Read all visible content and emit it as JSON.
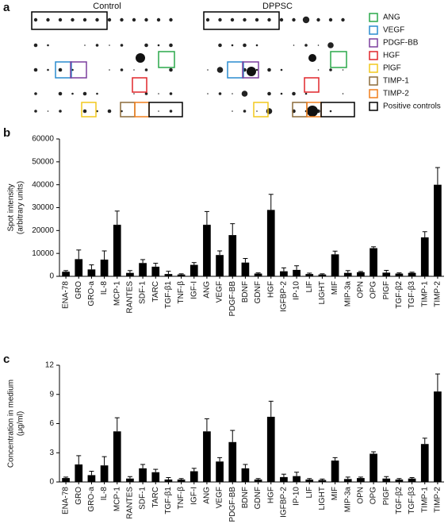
{
  "array_panel": {
    "panel": "a",
    "titles": [
      "Control",
      "DPPSC"
    ],
    "legend": [
      {
        "label": "ANG",
        "color": "#2aa84a"
      },
      {
        "label": "VEGF",
        "color": "#2a8ccf"
      },
      {
        "label": "PDGF-BB",
        "color": "#7b3f9e"
      },
      {
        "label": "HGF",
        "color": "#e0262b"
      },
      {
        "label": "PlGF",
        "color": "#f2c81d"
      },
      {
        "label": "TIMP-1",
        "color": "#8c6b3a"
      },
      {
        "label": "TIMP-2",
        "color": "#f07f1c"
      },
      {
        "label": "Positive controls",
        "color": "#000000"
      }
    ]
  },
  "chart_data": [
    {
      "type": "bar",
      "panel": "b",
      "ylabel": [
        "Spot intensity",
        "(arbitrary units)"
      ],
      "color": "#000000",
      "categories": [
        "ENA-78",
        "GRO",
        "GRO-a",
        "IL-8",
        "MCP-1",
        "RANTES",
        "SDF-1",
        "TARC",
        "TGF-β1",
        "TNF-β",
        "IGF-I",
        "ANG",
        "VEGF",
        "PDGF-BB",
        "BDNF",
        "GDNF",
        "HGF",
        "IGFBP-2",
        "IP-10",
        "LIF",
        "LIGHT",
        "MIF",
        "MIP-3a",
        "OPN",
        "OPG",
        "PIGF",
        "TGF-β2",
        "TGF-β3",
        "TIMP-1",
        "TIMP-2"
      ],
      "values": [
        2000,
        7500,
        3000,
        7300,
        22500,
        1500,
        5800,
        4200,
        1000,
        800,
        5000,
        22500,
        9300,
        18000,
        6000,
        1200,
        29000,
        2200,
        2800,
        1000,
        800,
        9600,
        1500,
        1800,
        12300,
        1600,
        1200,
        1500,
        17000,
        40000
      ],
      "errors": [
        500,
        4000,
        2000,
        3800,
        6000,
        1000,
        1500,
        1500,
        1200,
        300,
        1000,
        5800,
        1800,
        5000,
        1800,
        300,
        6800,
        1500,
        1800,
        400,
        300,
        1400,
        1000,
        300,
        600,
        1000,
        300,
        300,
        2500,
        7500
      ],
      "ylim": [
        0,
        60000
      ],
      "yticks": [
        0,
        10000,
        20000,
        30000,
        40000,
        50000,
        60000
      ]
    },
    {
      "type": "bar",
      "panel": "c",
      "ylabel": [
        "Concentration in medium",
        "(μg/ml)"
      ],
      "color": "#000000",
      "categories": [
        "ENA-78",
        "GRO",
        "GRO-a",
        "IL-8",
        "MCP-1",
        "RANTES",
        "SDF-1",
        "TARC",
        "TGF-β1",
        "TNF-β",
        "IGF-I",
        "ANG",
        "VEGF",
        "PDGF-BB",
        "BDNF",
        "GDNF",
        "HGF",
        "IGFBP-2",
        "IP-10",
        "LIF",
        "LIGHT",
        "MIF",
        "MIP-3a",
        "OPN",
        "OPG",
        "PIGF",
        "TGF-β2",
        "TGF-β3",
        "TIMP-1",
        "TIMP-2"
      ],
      "values": [
        0.4,
        1.8,
        0.7,
        1.7,
        5.2,
        0.35,
        1.4,
        1.0,
        0.25,
        0.25,
        1.1,
        5.2,
        2.1,
        4.1,
        1.4,
        0.25,
        6.7,
        0.5,
        0.6,
        0.25,
        0.2,
        2.2,
        0.3,
        0.4,
        2.9,
        0.35,
        0.25,
        0.35,
        3.9,
        9.3
      ],
      "errors": [
        0.1,
        0.9,
        0.4,
        0.9,
        1.4,
        0.2,
        0.4,
        0.3,
        0.2,
        0.1,
        0.3,
        1.3,
        0.4,
        1.2,
        0.4,
        0.1,
        1.6,
        0.3,
        0.4,
        0.1,
        0.1,
        0.3,
        0.2,
        0.1,
        0.2,
        0.2,
        0.1,
        0.1,
        0.6,
        1.8
      ],
      "ylim": [
        0,
        12
      ],
      "yticks": [
        0,
        3,
        6,
        9,
        12
      ]
    }
  ]
}
